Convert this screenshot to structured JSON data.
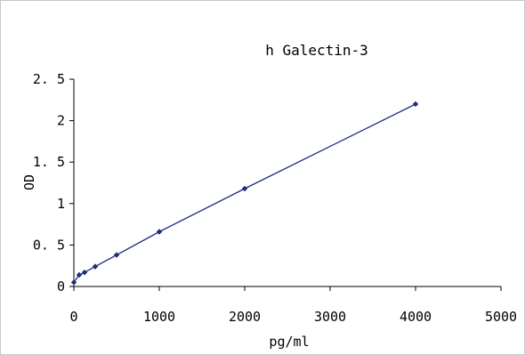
{
  "chart_data": {
    "type": "line",
    "title": "h Galectin-3",
    "xlabel": "pg/ml",
    "ylabel": "OD",
    "xlim": [
      0,
      5000
    ],
    "ylim": [
      0,
      2.5
    ],
    "x_ticks": [
      0,
      1000,
      2000,
      3000,
      4000,
      5000
    ],
    "x_tick_labels": [
      "0",
      "1000",
      "2000",
      "3000",
      "4000",
      "5000"
    ],
    "y_ticks": [
      0,
      0.5,
      1,
      1.5,
      2,
      2.5
    ],
    "y_tick_labels": [
      "0",
      "0. 5",
      "1",
      "1. 5",
      "2",
      "2. 5"
    ],
    "grid": false,
    "legend": "none",
    "series": [
      {
        "color": "#1f2a80",
        "marker": "diamond",
        "x": [
          0,
          62.5,
          125,
          250,
          500,
          1000,
          2000,
          4000
        ],
        "y": [
          0.05,
          0.14,
          0.17,
          0.24,
          0.38,
          0.66,
          1.18,
          2.2
        ]
      }
    ]
  }
}
